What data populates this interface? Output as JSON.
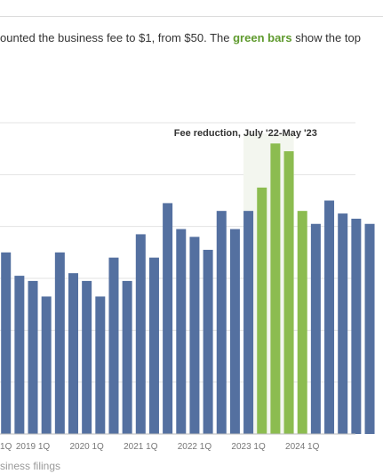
{
  "caption": {
    "before": "ounted the business fee to $1, from $50. The ",
    "highlight": "green bars",
    "after": " show the top"
  },
  "source_text": "siness filings",
  "colors": {
    "blue": "#5470a0",
    "green": "#8cbc50",
    "grid": "#e3e3e3",
    "axis": "#bbbbbb"
  },
  "chart_data": {
    "type": "bar",
    "title": "",
    "xlabel": "",
    "ylabel": "",
    "ylim": [
      0,
      12
    ],
    "grid": true,
    "tick_labels": [
      "1Q",
      "2019 1Q",
      "2020 1Q",
      "2021 1Q",
      "2022 1Q",
      "2023 1Q",
      "2024 1Q"
    ],
    "tick_positions": [
      0,
      2,
      6,
      10,
      14,
      18,
      22
    ],
    "annotation": {
      "label": "Fee reduction, July '22-May '23",
      "start": 18,
      "end": 21
    },
    "values": [
      7.0,
      6.1,
      5.9,
      5.3,
      7.0,
      6.2,
      5.9,
      5.3,
      6.8,
      5.9,
      7.7,
      6.8,
      8.9,
      7.9,
      7.6,
      7.1,
      8.6,
      7.9,
      8.6,
      9.5,
      11.2,
      10.9,
      8.6,
      8.1,
      9.0,
      8.5,
      8.3,
      8.1
    ],
    "highlight": [
      false,
      false,
      false,
      false,
      false,
      false,
      false,
      false,
      false,
      false,
      false,
      false,
      false,
      false,
      false,
      false,
      false,
      false,
      false,
      true,
      true,
      true,
      true,
      false,
      false,
      false,
      false,
      false
    ]
  }
}
